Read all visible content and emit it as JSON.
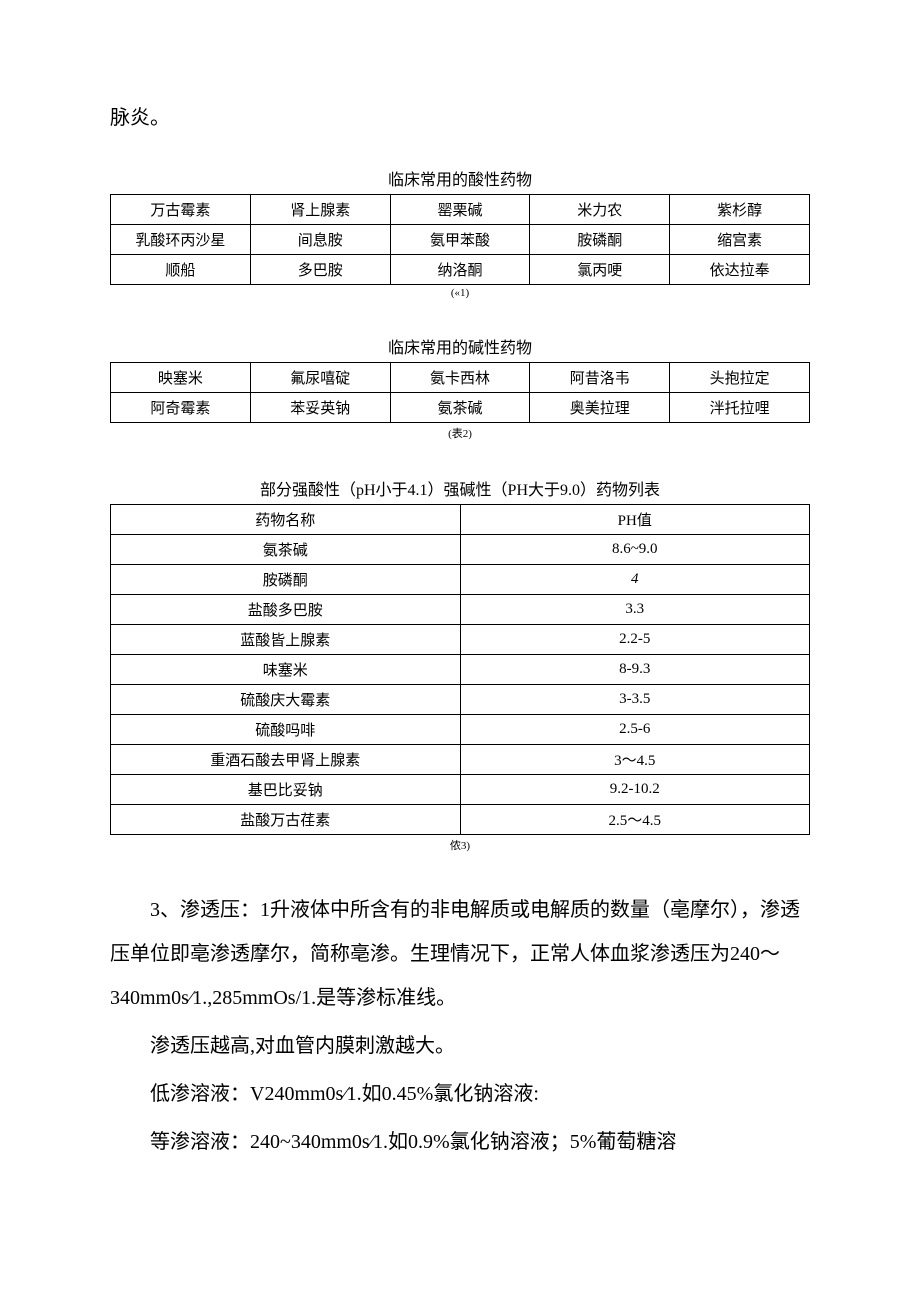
{
  "topText": "脉炎。",
  "table1": {
    "title": "临床常用的酸性药物",
    "caption": "(«1)",
    "rows": [
      [
        "万古霉素",
        "肾上腺素",
        "罂栗碱",
        "米力农",
        "紫杉醇"
      ],
      [
        "乳酸环丙沙星",
        "间息胺",
        "氨甲苯酸",
        "胺磷酮",
        "缩宫素"
      ],
      [
        "顺船",
        "多巴胺",
        "纳洛酮",
        "氯丙哽",
        "依达拉奉"
      ]
    ]
  },
  "table2": {
    "title": "临床常用的碱性药物",
    "caption": "(表2)",
    "rows": [
      [
        "映塞米",
        "氟尿嘻碇",
        "氨卡西林",
        "阿昔洛韦",
        "头抱拉定"
      ],
      [
        "阿奇霉素",
        "苯妥英钠",
        "氨茶碱",
        "奥美拉理",
        "泮托拉哩"
      ]
    ]
  },
  "table3": {
    "title": "部分强酸性（pH小于4.1）强碱性（PH大于9.0）药物列表",
    "caption": "侬3)",
    "header": [
      "药物名称",
      "PH值"
    ],
    "rows": [
      [
        "氨茶碱",
        "8.6~9.0"
      ],
      [
        "胺磷酮",
        "4"
      ],
      [
        "盐酸多巴胺",
        "3.3"
      ],
      [
        "蓝酸皆上腺素",
        "2.2-5"
      ],
      [
        "味塞米",
        "8-9.3"
      ],
      [
        "硫酸庆大霉素",
        "3-3.5"
      ],
      [
        "硫酸吗啡",
        "2.5-6"
      ],
      [
        "重酒石酸去甲肾上腺素",
        "3〜4.5"
      ],
      [
        "基巴比妥钠",
        "9.2-10.2"
      ],
      [
        "盐酸万古荏素",
        "2.5〜4.5"
      ]
    ],
    "italicRows": [
      1
    ]
  },
  "paragraphs": {
    "p1": "3、渗透压：1升液体中所含有的非电解质或电解质的数量（亳摩尔），渗透压单位即亳渗透摩尔，简称亳渗。生理情况下，正常人体血浆渗透压为240〜340mm0s∕1.,285mmOs/1.是等渗标准线。",
    "p2": "渗透压越高,对血管内膜刺激越大。",
    "p3": "低渗溶液：V240mm0s∕1.如0.45%氯化钠溶液:",
    "p4": "等渗溶液：240~340mm0s∕1.如0.9%氯化钠溶液；5%葡萄糖溶"
  }
}
